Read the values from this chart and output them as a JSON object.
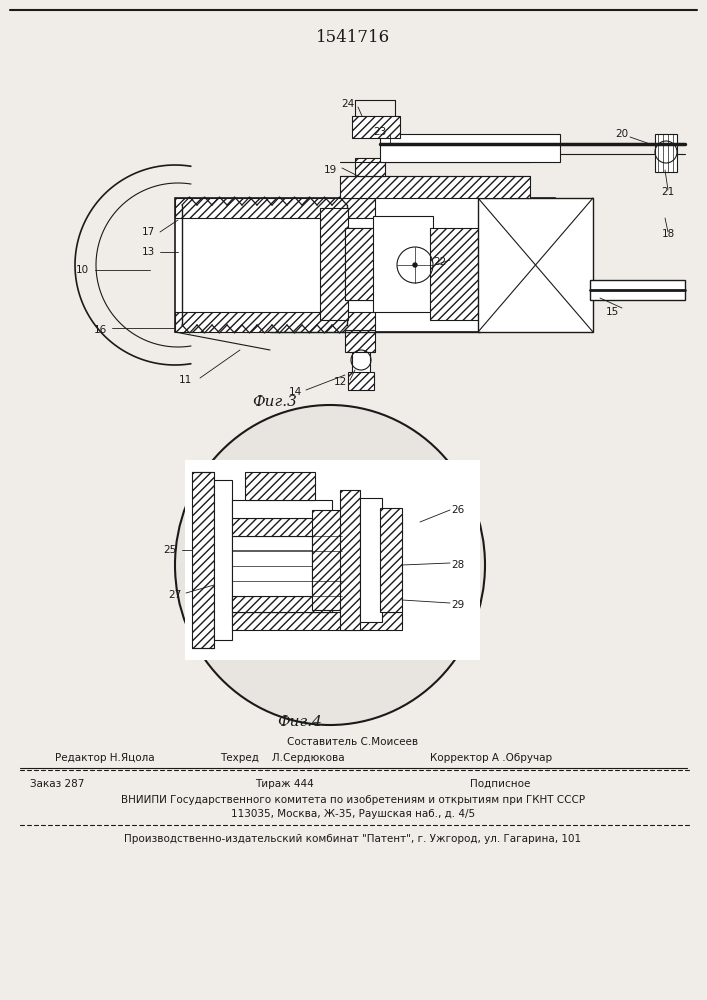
{
  "patent_number": "1541716",
  "bg_color": "#f0ede8",
  "line_color": "#1a1a1a",
  "fig3_caption": "Фиг.3",
  "fig4_caption": "Фиг.4",
  "footer": {
    "composer": "Составитель С.Моисеев",
    "editor_label": "Редактор Н.Яцола",
    "techred_label": "Техред    Л.Сердюкова",
    "corrector_label": "Корректор А .Обручар",
    "order": "Заказ 287",
    "tirazh": "Тираж 444",
    "podpisnoe": "Подписное",
    "vniiipi_line1": "ВНИИПИ Государственного комитета по изобретениям и открытиям при ГКНТ СССР",
    "vniiipi_line2": "113035, Москва, Ж-35, Раушская наб., д. 4/5",
    "factory": "Производственно-издательский комбинат \"Патент\", г. Ужгород, ул. Гагарина, 101"
  }
}
